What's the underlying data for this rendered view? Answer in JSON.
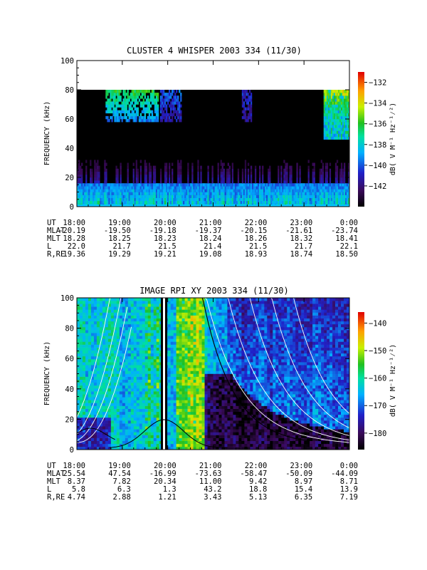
{
  "chart_data": [
    {
      "type": "heatmap",
      "title": "CLUSTER 4 WHISPER 2003 334 (11/30)",
      "ylabel": "FREQUENCY (kHz)",
      "ylim": [
        0,
        100
      ],
      "y_ticks": [
        "0",
        "20",
        "40",
        "60",
        "80",
        "100"
      ],
      "x_ticks": [
        "18:00",
        "19:00",
        "20:00",
        "21:00",
        "22:00",
        "23:00",
        "0:00"
      ],
      "data_upper_limit_khz": 80,
      "colorbar": {
        "label": "dB( V M⁻¹ Hz⁻¹⁄²)",
        "ticks": [
          "-132",
          "-134",
          "-136",
          "-138",
          "-140",
          "-142"
        ],
        "range": [
          -144,
          -131
        ]
      },
      "ephemeris": {
        "labels": [
          "UT",
          "MLAT",
          "MLT",
          "L",
          "R,RE"
        ],
        "columns": [
          [
            "18:00",
            "-20.19",
            "18.28",
            "22.0",
            "19.36"
          ],
          [
            "19:00",
            "-19.50",
            "18.25",
            "21.7",
            "19.29"
          ],
          [
            "20:00",
            "-19.18",
            "18.23",
            "21.5",
            "19.21"
          ],
          [
            "21:00",
            "-19.37",
            "18.24",
            "21.4",
            "19.08"
          ],
          [
            "22:00",
            "-20.15",
            "18.26",
            "21.5",
            "18.93"
          ],
          [
            "23:00",
            "-21.61",
            "18.32",
            "21.7",
            "18.74"
          ],
          [
            "0:00",
            "-23.74",
            "18.41",
            "22.1",
            "18.50"
          ]
        ]
      }
    },
    {
      "type": "heatmap",
      "title": "IMAGE RPI XY 2003 334 (11/30)",
      "ylabel": "FREQUENCY (kHz)",
      "ylim": [
        0,
        100
      ],
      "y_ticks": [
        "0",
        "20",
        "40",
        "60",
        "80",
        "100"
      ],
      "x_ticks": [
        "18:00",
        "19:00",
        "20:00",
        "21:00",
        "22:00",
        "23:00",
        "0:00"
      ],
      "colorbar": {
        "label": "dB( V M⁻¹ Hz⁻¹⁄²)",
        "ticks": [
          "-140",
          "-150",
          "-160",
          "-170",
          "-180"
        ],
        "range": [
          -186,
          -136
        ]
      },
      "ephemeris": {
        "labels": [
          "UT",
          "MLAT",
          "MLT",
          "L",
          "R,RE"
        ],
        "columns": [
          [
            "18:00",
            "25.54",
            "8.37",
            "5.8",
            "4.74"
          ],
          [
            "19:00",
            "47.54",
            "7.82",
            "6.3",
            "2.88"
          ],
          [
            "20:00",
            "-16.99",
            "20.34",
            "1.3",
            "1.21"
          ],
          [
            "21:00",
            "-73.63",
            "11.00",
            "43.2",
            "3.43"
          ],
          [
            "22:00",
            "-58.47",
            "9.42",
            "18.8",
            "5.13"
          ],
          [
            "23:00",
            "-50.09",
            "8.97",
            "15.4",
            "6.35"
          ],
          [
            "0:00",
            "-44.09",
            "8.71",
            "13.9",
            "7.19"
          ]
        ]
      }
    }
  ]
}
